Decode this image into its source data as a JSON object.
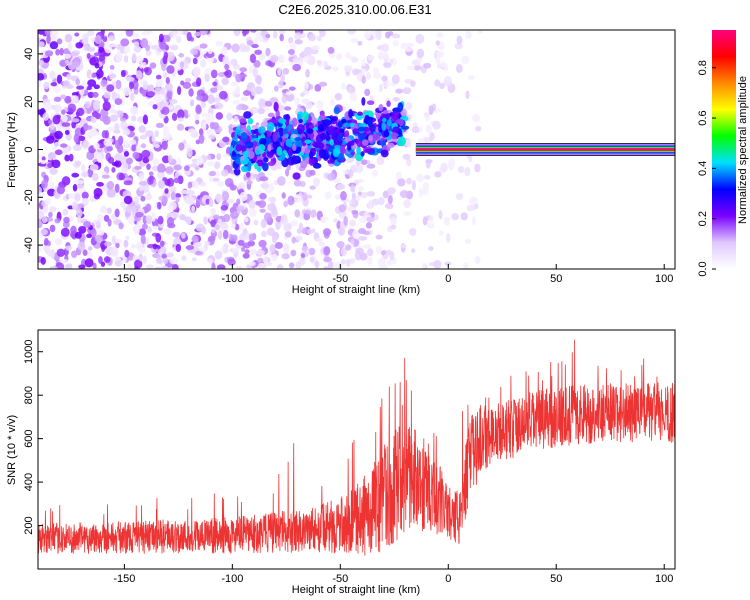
{
  "title": "C2E6.2025.310.00.06.E31",
  "chart_data": [
    {
      "type": "heatmap",
      "xlabel": "Height of straight line (km)",
      "ylabel": "Frequency (Hz)",
      "xlim": [
        -190,
        105
      ],
      "ylim": [
        -50,
        50
      ],
      "xticks": [
        -150,
        -100,
        -50,
        0,
        50,
        100
      ],
      "yticks": [
        -40,
        -20,
        0,
        20,
        40
      ],
      "colorbar": {
        "label": "Normalized spectral amplitude",
        "range": [
          0,
          0.95
        ],
        "ticks": [
          "0.0",
          "0.2",
          "0.4",
          "0.6",
          "0.8"
        ],
        "colors": [
          "#ffffff",
          "#e0c8ff",
          "#7a00ff",
          "#0000ff",
          "#00e0ff",
          "#00ff00",
          "#ffff00",
          "#ff8800",
          "#ff0000",
          "#ff0080"
        ]
      },
      "features": [
        {
          "name": "noise cloud",
          "x_range": [
            -190,
            15
          ],
          "freq_range": [
            -50,
            50
          ],
          "amplitude": 0.12
        },
        {
          "name": "doppler track",
          "x_range": [
            -100,
            -20
          ],
          "freq_center": [
            0,
            10
          ],
          "amplitude": 0.3
        },
        {
          "name": "bright signal line",
          "x_range": [
            -15,
            105
          ],
          "freq": 0,
          "amplitude": 0.95
        }
      ]
    },
    {
      "type": "line",
      "title": "",
      "xlabel": "Height of straight line (km)",
      "ylabel": "SNR (10 * v/v)",
      "xlim": [
        -190,
        105
      ],
      "ylim": [
        0,
        1100
      ],
      "xticks": [
        -150,
        -100,
        -50,
        0,
        50,
        100
      ],
      "yticks": [
        200,
        400,
        600,
        800,
        1000
      ],
      "color": "#ee3333",
      "series": [
        {
          "name": "SNR",
          "x": [
            -190,
            -175,
            -160,
            -145,
            -130,
            -115,
            -100,
            -90,
            -80,
            -70,
            -60,
            -50,
            -45,
            -40,
            -35,
            -30,
            -25,
            -20,
            -15,
            -10,
            -5,
            0,
            5,
            10,
            15,
            20,
            30,
            40,
            50,
            60,
            70,
            80,
            90,
            100,
            105
          ],
          "center": [
            140,
            140,
            145,
            145,
            150,
            150,
            155,
            160,
            170,
            175,
            185,
            200,
            215,
            240,
            270,
            320,
            380,
            430,
            420,
            380,
            330,
            260,
            240,
            500,
            600,
            620,
            650,
            680,
            700,
            710,
            720,
            720,
            720,
            720,
            720
          ],
          "spread": [
            70,
            70,
            75,
            75,
            80,
            80,
            85,
            90,
            95,
            100,
            110,
            130,
            150,
            180,
            210,
            250,
            260,
            260,
            240,
            220,
            180,
            120,
            130,
            200,
            160,
            140,
            140,
            140,
            140,
            140,
            140,
            140,
            140,
            140,
            140
          ],
          "peak": [
            310,
            300,
            310,
            320,
            340,
            350,
            380,
            400,
            440,
            620,
            480,
            560,
            620,
            650,
            700,
            840,
            920,
            980,
            940,
            880,
            700,
            420,
            800,
            900,
            820,
            860,
            950,
            900,
            1000,
            1080,
            1000,
            980,
            980,
            960,
            960
          ]
        }
      ]
    }
  ]
}
